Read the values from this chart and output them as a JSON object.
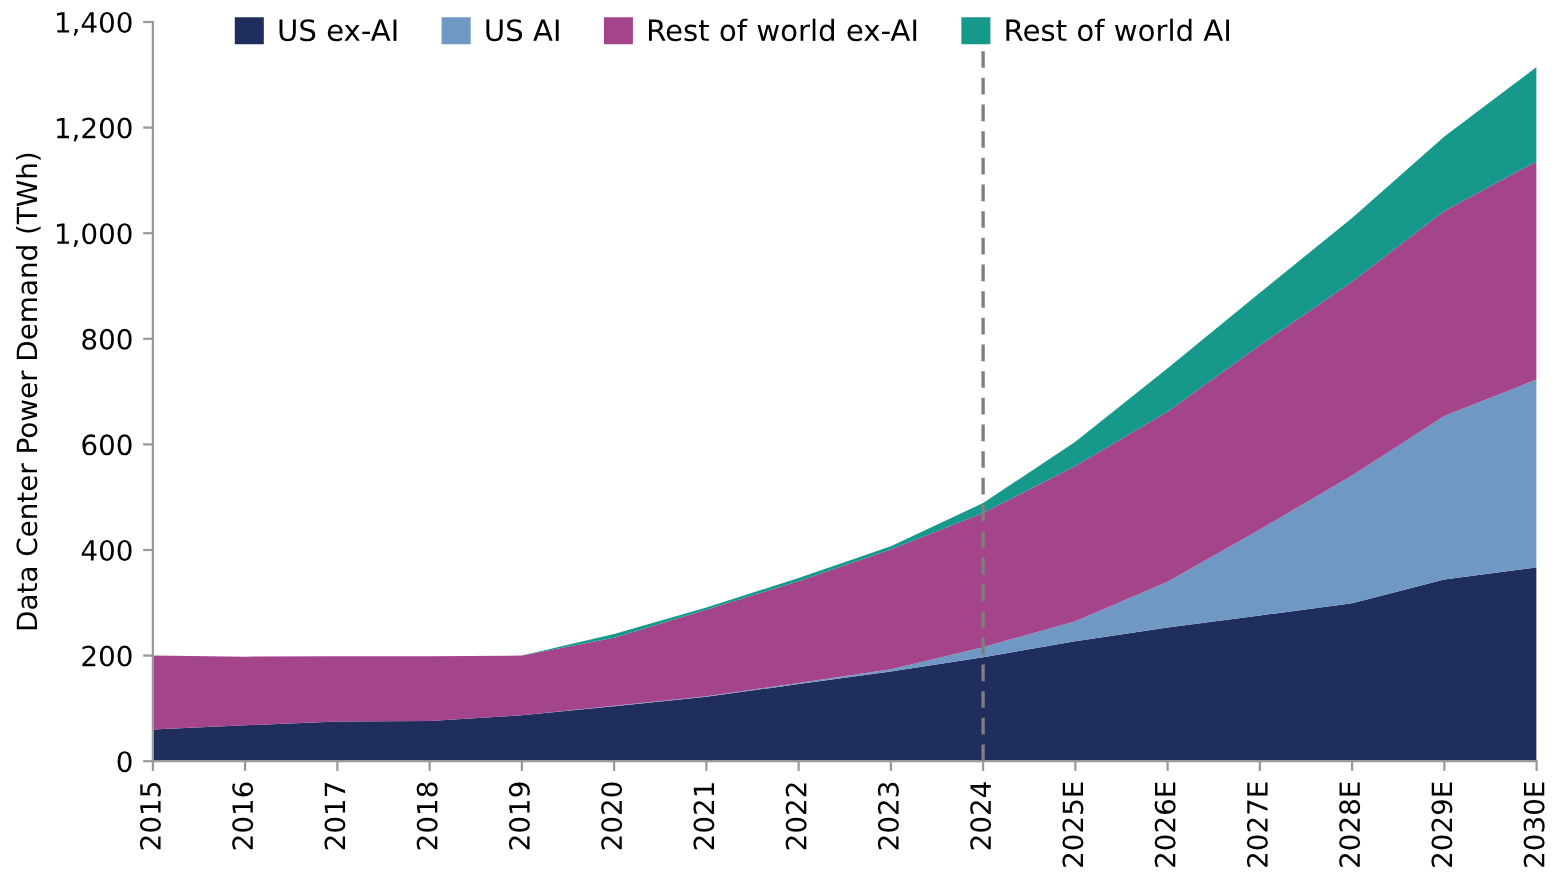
{
  "chart_data": {
    "type": "area",
    "stacked": true,
    "ylabel": "Data Center Power Demand (TWh)",
    "categories": [
      "2015",
      "2016",
      "2017",
      "2018",
      "2019",
      "2020",
      "2021",
      "2022",
      "2023",
      "2024",
      "2025E",
      "2026E",
      "2027E",
      "2028E",
      "2029E",
      "2030E"
    ],
    "series": [
      {
        "name": "US ex-AI",
        "color": "#1f2e5c",
        "values": [
          60,
          68,
          75,
          76,
          87,
          104,
          122,
          146,
          170,
          197,
          227,
          253,
          276,
          299,
          344,
          367
        ]
      },
      {
        "name": "US AI",
        "color": "#7098c4",
        "values": [
          0,
          0,
          0,
          0,
          0,
          1,
          1,
          2,
          4,
          19,
          38,
          87,
          163,
          242,
          310,
          356
        ]
      },
      {
        "name": "Rest of world ex-AI",
        "color": "#a4448a",
        "values": [
          140,
          130,
          124,
          123,
          113,
          129,
          164,
          193,
          227,
          254,
          294,
          322,
          349,
          367,
          388,
          413
        ]
      },
      {
        "name": "Rest of world AI",
        "color": "#16998a",
        "values": [
          0,
          0,
          0,
          0,
          0,
          7,
          4,
          6,
          6,
          19,
          46,
          82,
          99,
          121,
          141,
          179
        ]
      }
    ],
    "ylim": [
      0,
      1400
    ],
    "yticks": [
      {
        "value": 0,
        "label": "0"
      },
      {
        "value": 200,
        "label": "200"
      },
      {
        "value": 400,
        "label": "400"
      },
      {
        "value": 600,
        "label": "600"
      },
      {
        "value": 800,
        "label": "800"
      },
      {
        "value": 1000,
        "label": "1,000"
      },
      {
        "value": 1200,
        "label": "1,200"
      },
      {
        "value": 1400,
        "label": "1,400"
      }
    ],
    "ref_lines": [
      {
        "axis": "x",
        "value": "2024",
        "color": "#7f7f7f",
        "line_style": "dashed"
      }
    ],
    "grid": false,
    "legend": "top"
  }
}
